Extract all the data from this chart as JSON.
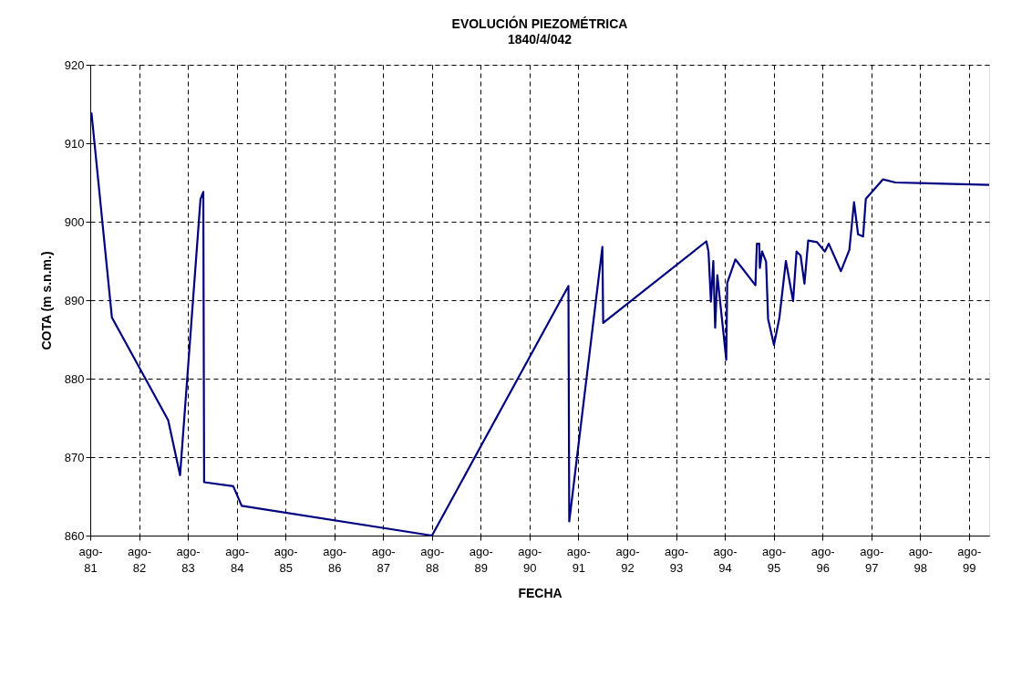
{
  "chart_data": {
    "type": "line",
    "title": "EVOLUCIÓN PIEZOMÉTRICA",
    "subtitle": "1840/4/042",
    "xlabel": "FECHA",
    "ylabel": "COTA (m s.n.m.)",
    "xlim": [
      "1981-08-01",
      "1999-12-31"
    ],
    "xticks": [
      {
        "value": "1981-08-01",
        "label": "ago-81"
      },
      {
        "value": "1982-08-01",
        "label": "ago-82"
      },
      {
        "value": "1983-08-01",
        "label": "ago-83"
      },
      {
        "value": "1984-08-01",
        "label": "ago-84"
      },
      {
        "value": "1985-08-01",
        "label": "ago-85"
      },
      {
        "value": "1986-08-01",
        "label": "ago-86"
      },
      {
        "value": "1987-08-01",
        "label": "ago-87"
      },
      {
        "value": "1988-08-01",
        "label": "ago-88"
      },
      {
        "value": "1989-08-01",
        "label": "ago-89"
      },
      {
        "value": "1990-08-01",
        "label": "ago-90"
      },
      {
        "value": "1991-08-01",
        "label": "ago-91"
      },
      {
        "value": "1992-08-01",
        "label": "ago-92"
      },
      {
        "value": "1993-08-01",
        "label": "ago-93"
      },
      {
        "value": "1994-08-01",
        "label": "ago-94"
      },
      {
        "value": "1995-08-01",
        "label": "ago-95"
      },
      {
        "value": "1996-08-01",
        "label": "ago-96"
      },
      {
        "value": "1997-08-01",
        "label": "ago-97"
      },
      {
        "value": "1998-08-01",
        "label": "ago-98"
      },
      {
        "value": "1999-08-01",
        "label": "ago-99"
      }
    ],
    "ylim": [
      860,
      920
    ],
    "yticks": [
      860,
      870,
      880,
      890,
      900,
      910,
      920
    ],
    "grid": true,
    "marker": "none",
    "line_style": "solid",
    "x": [
      "1981-08-10",
      "1982-01-10",
      "1983-03-07",
      "1983-06-04",
      "1983-11-04",
      "1983-11-25",
      "1983-12-01",
      "1984-07-06",
      "1984-09-07",
      "1988-08-01",
      "1991-05-19",
      "1991-05-25",
      "1992-01-28",
      "1992-02-03",
      "1994-03-16",
      "1994-04-01",
      "1994-04-19",
      "1994-05-07",
      "1994-05-21",
      "1994-06-06",
      "1994-08-12",
      "1994-08-19",
      "1994-10-19",
      "1995-03-18",
      "1995-03-29",
      "1995-04-16",
      "1995-04-20",
      "1995-05-07",
      "1995-06-06",
      "1995-06-21",
      "1995-08-04",
      "1995-09-13",
      "1995-11-01",
      "1995-12-25",
      "1996-01-20",
      "1996-02-19",
      "1996-03-19",
      "1996-04-16",
      "1996-06-21",
      "1996-08-19",
      "1996-09-17",
      "1996-12-17",
      "1997-02-18",
      "1997-03-25",
      "1997-04-24",
      "1997-06-01",
      "1997-06-21",
      "1997-10-28",
      "1998-01-28",
      "1999-12-31"
    ],
    "series": [
      {
        "color": "#000080",
        "values": [
          913.9,
          887.8,
          874.7,
          867.7,
          902.9,
          903.8,
          866.8,
          866.3,
          863.8,
          860.0,
          891.8,
          861.8,
          896.8,
          887.1,
          897.5,
          896.2,
          889.8,
          895.0,
          886.5,
          893.2,
          882.4,
          892.2,
          895.2,
          891.9,
          897.2,
          897.2,
          894.1,
          896.2,
          894.9,
          887.6,
          884.3,
          887.7,
          895.0,
          889.9,
          896.2,
          895.7,
          892.1,
          897.6,
          897.4,
          896.2,
          897.2,
          893.7,
          896.4,
          902.5,
          898.4,
          898.1,
          902.9,
          905.4,
          905.0,
          904.7
        ]
      }
    ]
  }
}
